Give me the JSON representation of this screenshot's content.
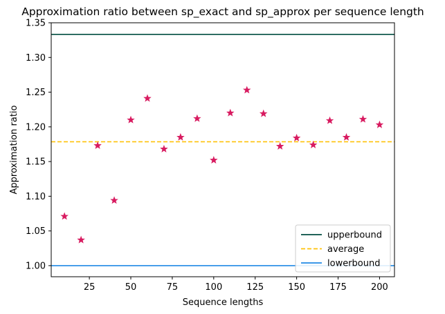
{
  "chart_data": {
    "type": "scatter",
    "title": "Approximation ratio between sp_exact and sp_approx per sequence length",
    "xlabel": "Sequence lengths",
    "ylabel": "Approximation ratio",
    "xlim": [
      2,
      209
    ],
    "ylim": [
      0.984,
      1.35
    ],
    "xticks": [
      25,
      50,
      75,
      100,
      125,
      150,
      175,
      200
    ],
    "xtick_labels": [
      "25",
      "50",
      "75",
      "100",
      "125",
      "150",
      "175",
      "200"
    ],
    "yticks": [
      1.0,
      1.05,
      1.1,
      1.15,
      1.2,
      1.25,
      1.3,
      1.35
    ],
    "ytick_labels": [
      "1.00",
      "1.05",
      "1.10",
      "1.15",
      "1.20",
      "1.25",
      "1.30",
      "1.35"
    ],
    "grid": false,
    "legend_position": "lower-right",
    "series": [
      {
        "marker": "star",
        "color": "#d81b60",
        "x": [
          10,
          20,
          30,
          40,
          50,
          60,
          70,
          80,
          90,
          100,
          110,
          120,
          130,
          140,
          150,
          160,
          170,
          180,
          190,
          200
        ],
        "y": [
          1.071,
          1.037,
          1.173,
          1.094,
          1.21,
          1.241,
          1.168,
          1.185,
          1.212,
          1.152,
          1.22,
          1.253,
          1.219,
          1.172,
          1.184,
          1.174,
          1.209,
          1.185,
          1.211,
          1.203
        ]
      }
    ],
    "hlines": [
      {
        "name": "upperbound",
        "y": 1.3333,
        "color": "#004d40",
        "style": "solid"
      },
      {
        "name": "average",
        "y": 1.1785,
        "color": "#ffc107",
        "style": "dashed"
      },
      {
        "name": "lowerbound",
        "y": 1.0,
        "color": "#1e88e5",
        "style": "solid"
      }
    ]
  }
}
